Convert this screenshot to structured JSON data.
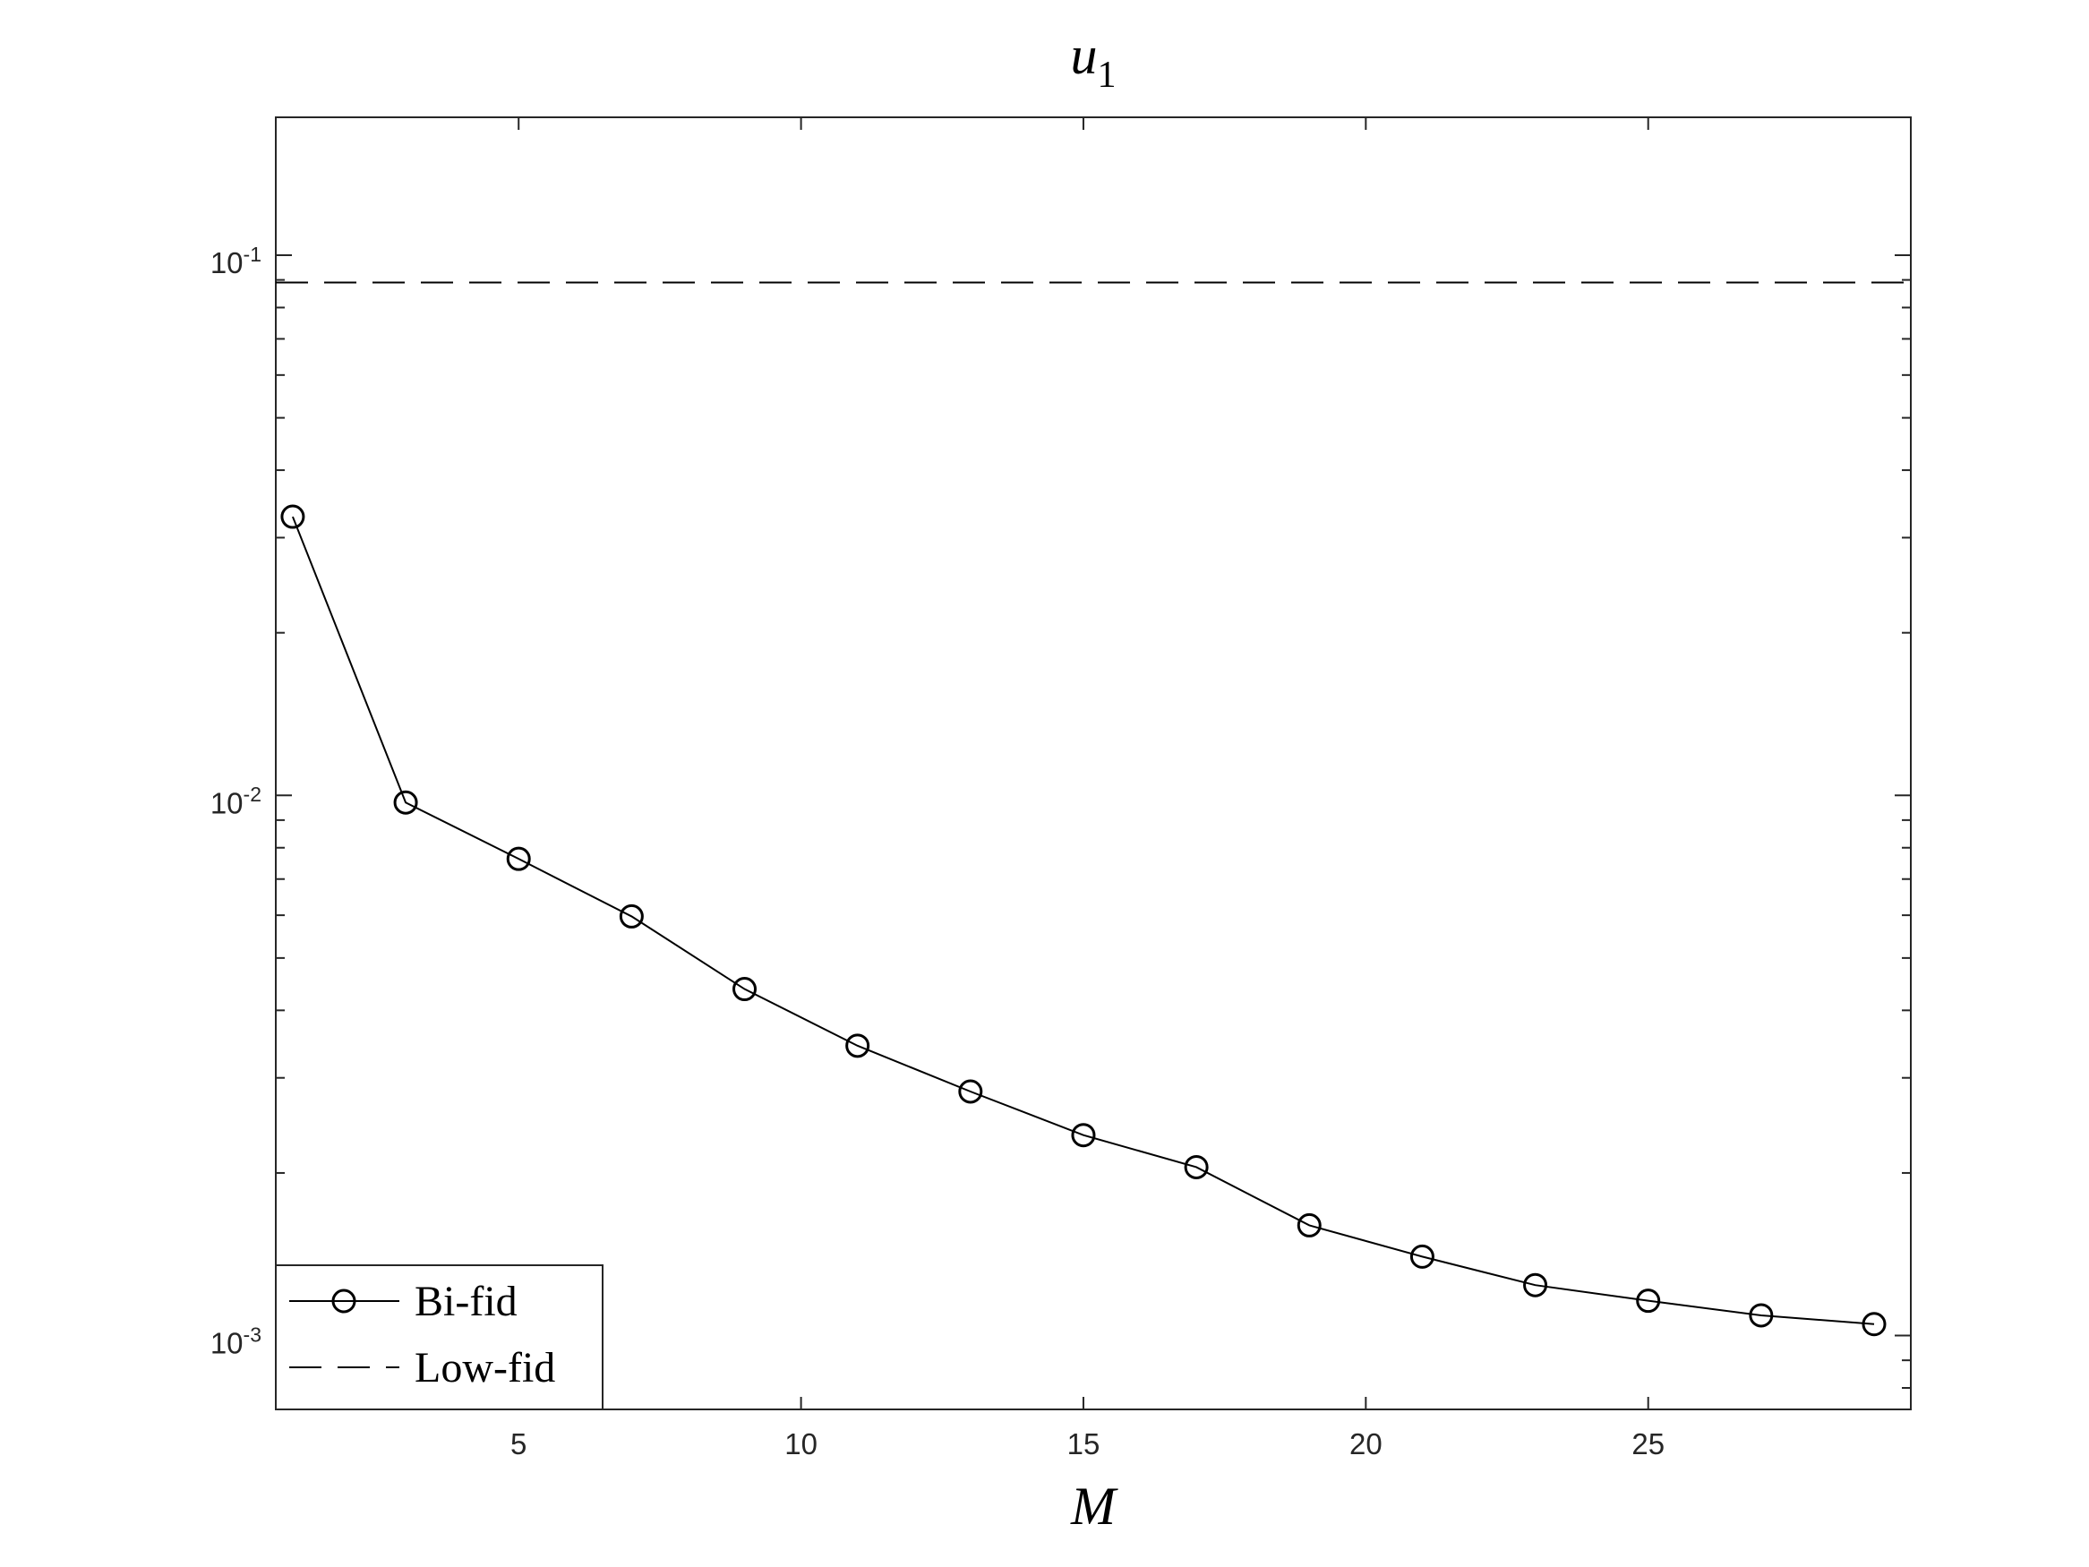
{
  "chart_data": {
    "type": "line",
    "title": "u_1",
    "x_label": "M",
    "x": [
      1,
      3,
      5,
      7,
      9,
      11,
      13,
      15,
      17,
      19,
      21,
      23,
      25,
      27,
      29
    ],
    "series": [
      {
        "name": "Bi-fid",
        "color": "#000000",
        "marker": "circle",
        "values": [
          0.0328,
          0.0097,
          0.00763,
          0.00597,
          0.00438,
          0.00344,
          0.00283,
          0.00235,
          0.00205,
          0.0016,
          0.0014,
          0.00124,
          0.00116,
          0.00109,
          0.00105
        ]
      },
      {
        "name": "Low-fid",
        "color": "#000000",
        "dash": true,
        "value": 0.089
      }
    ],
    "xlim": [
      0.7,
      29.65
    ],
    "xticks": [
      5,
      10,
      15,
      20,
      25
    ],
    "ylim": [
      0.00073,
      0.18
    ],
    "yticks": [
      {
        "value": 0.001,
        "label": "10^-3"
      },
      {
        "value": 0.01,
        "label": "10^-2"
      },
      {
        "value": 0.1,
        "label": "10^-1"
      }
    ],
    "y_log": true,
    "legend": "lower left"
  }
}
